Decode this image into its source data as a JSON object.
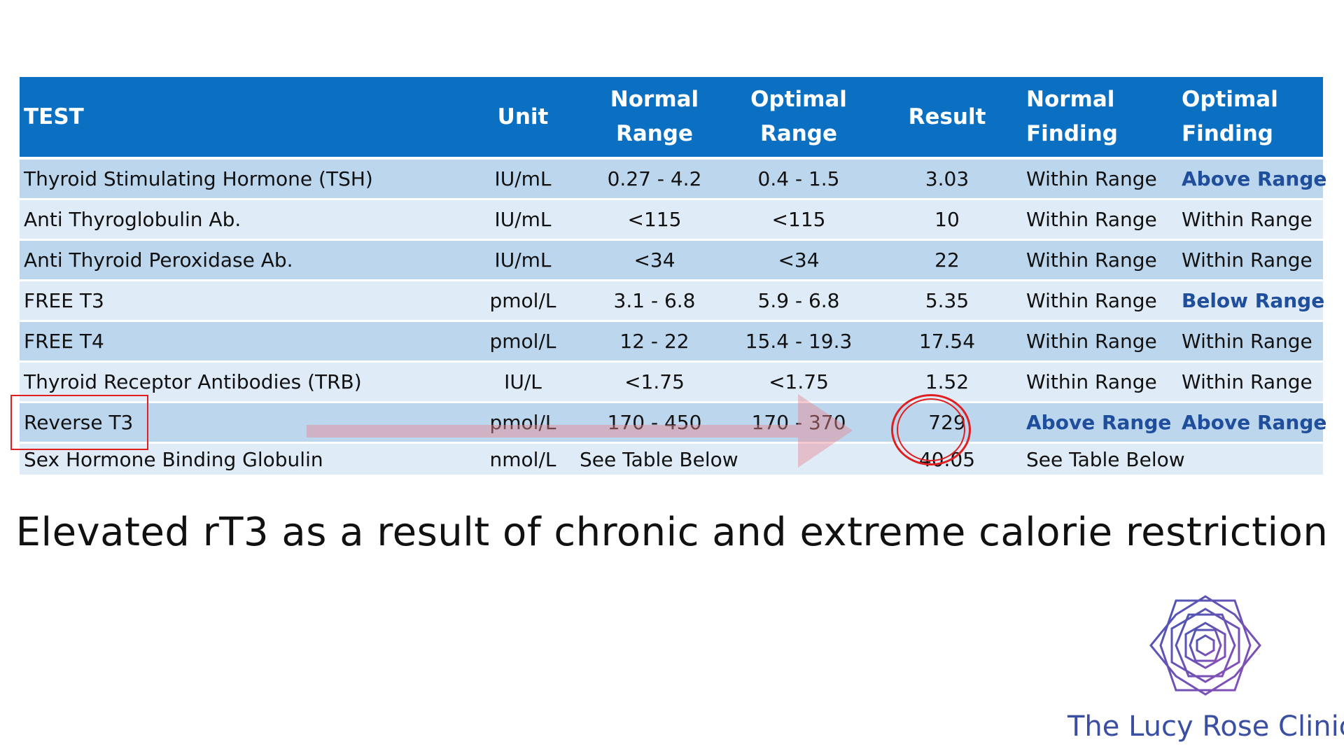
{
  "table": {
    "headers": {
      "test": "TEST",
      "unit": "Unit",
      "normal_range_line1": "Normal",
      "normal_range_line2": "Range",
      "optimal_range_line1": "Optimal",
      "optimal_range_line2": "Range",
      "result": "Result",
      "normal_finding_line1": "Normal",
      "normal_finding_line2": "Finding",
      "optimal_finding_line1": "Optimal",
      "optimal_finding_line2": "Finding"
    },
    "rows": [
      {
        "test": "Thyroid Stimulating Hormone (TSH)",
        "unit": "IU/mL",
        "normal_range": "0.27 - 4.2",
        "optimal_range": "0.4 - 1.5",
        "result": "3.03",
        "normal_finding": "Within Range",
        "optimal_finding": "Above Range"
      },
      {
        "test": "Anti Thyroglobulin Ab.",
        "unit": "IU/mL",
        "normal_range": "<115",
        "optimal_range": "<115",
        "result": "10",
        "normal_finding": "Within Range",
        "optimal_finding": "Within Range"
      },
      {
        "test": "Anti Thyroid Peroxidase Ab.",
        "unit": "IU/mL",
        "normal_range": "<34",
        "optimal_range": "<34",
        "result": "22",
        "normal_finding": "Within Range",
        "optimal_finding": "Within Range"
      },
      {
        "test": "FREE T3",
        "unit": "pmol/L",
        "normal_range": "3.1 - 6.8",
        "optimal_range": "5.9 - 6.8",
        "result": "5.35",
        "normal_finding": "Within Range",
        "optimal_finding": "Below Range"
      },
      {
        "test": "FREE T4",
        "unit": "pmol/L",
        "normal_range": "12 - 22",
        "optimal_range": "15.4 - 19.3",
        "result": "17.54",
        "normal_finding": "Within Range",
        "optimal_finding": "Within Range"
      },
      {
        "test": "Thyroid Receptor Antibodies (TRB)",
        "unit": "IU/L",
        "normal_range": "<1.75",
        "optimal_range": "<1.75",
        "result": "1.52",
        "normal_finding": "Within Range",
        "optimal_finding": "Within Range"
      },
      {
        "test": "Reverse T3",
        "unit": "pmol/L",
        "normal_range": "170 - 450",
        "optimal_range": "170 - 370",
        "result": "729",
        "normal_finding": "Above Range",
        "optimal_finding": "Above Range"
      },
      {
        "test": "Sex Hormone Binding Globulin",
        "unit": "nmol/L",
        "normal_range": "See Table Below",
        "optimal_range": "",
        "result": "40.05",
        "normal_finding": "See Table Below",
        "optimal_finding": ""
      }
    ]
  },
  "caption": "Elevated rT3 as a result of chronic and extreme calorie restriction",
  "brand": {
    "name": "The Lucy Rose Clinic",
    "logo_icon": "geometric-rose-logo",
    "color": "#3a4fa2"
  },
  "colors": {
    "header_bg": "#0b70c2",
    "row_dark": "#bcd6ee",
    "row_light": "#dfebf7",
    "flag_text": "#1f4e9c",
    "annotation_red": "#e02020"
  }
}
